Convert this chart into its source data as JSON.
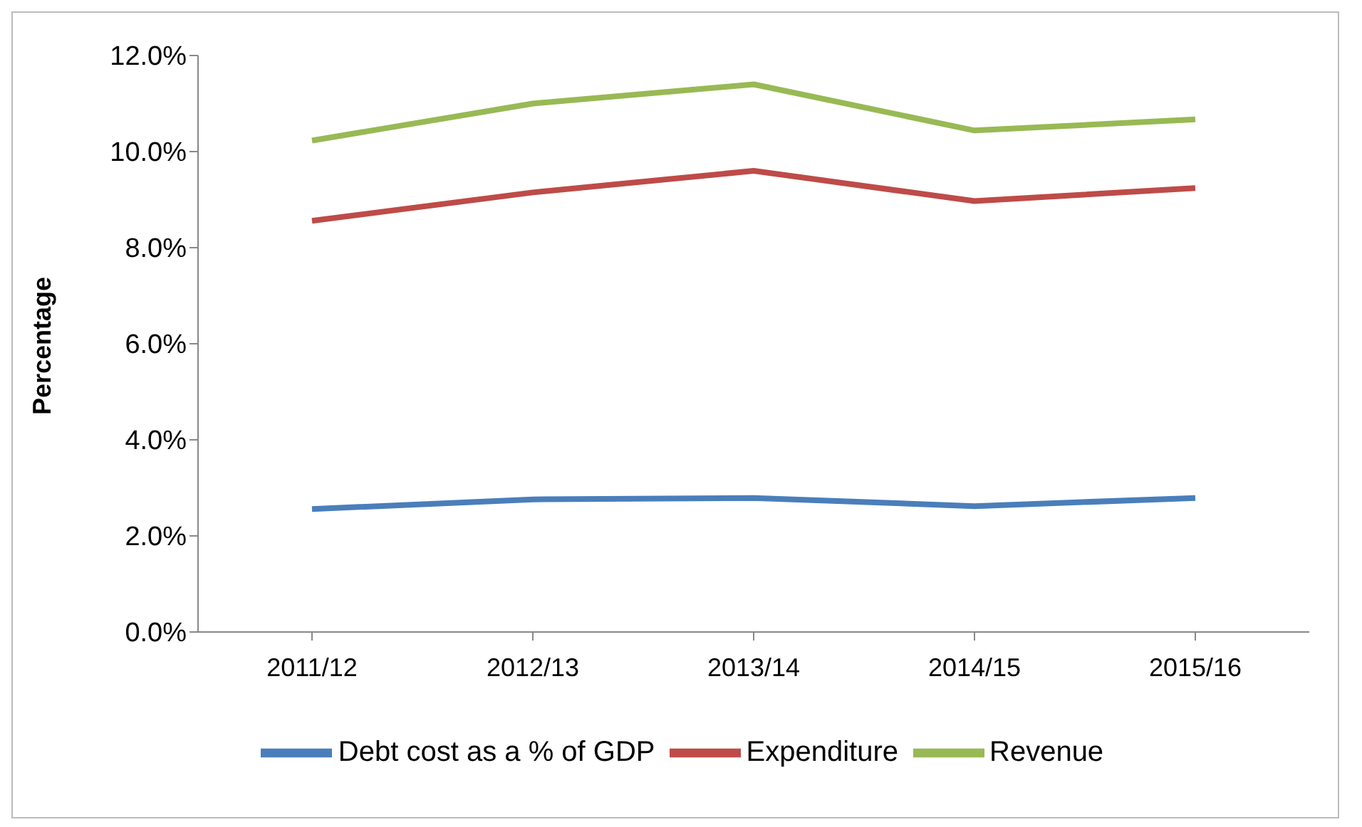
{
  "chart_data": {
    "type": "line",
    "ylabel": "Percentage",
    "categories": [
      "2011/12",
      "2012/13",
      "2013/14",
      "2014/15",
      "2015/16"
    ],
    "series": [
      {
        "name": "Debt cost as a % of GDP",
        "color": "#4a7ebb",
        "values": [
          2.56,
          2.76,
          2.79,
          2.62,
          2.79
        ]
      },
      {
        "name": "Expenditure",
        "color": "#be4b48",
        "values": [
          8.56,
          9.15,
          9.6,
          8.97,
          9.24
        ]
      },
      {
        "name": "Revenue",
        "color": "#98b954",
        "values": [
          10.23,
          11.0,
          11.4,
          10.44,
          10.67
        ]
      }
    ],
    "ylim": [
      0,
      12
    ],
    "yticks": [
      {
        "value": 0,
        "label": "0.0%"
      },
      {
        "value": 2,
        "label": "2.0%"
      },
      {
        "value": 4,
        "label": "4.0%"
      },
      {
        "value": 6,
        "label": "6.0%"
      },
      {
        "value": 8,
        "label": "8.0%"
      },
      {
        "value": 10,
        "label": "10.0%"
      },
      {
        "value": 12,
        "label": "12.0%"
      }
    ],
    "grid": false,
    "legend": "bottom",
    "marker": "none",
    "line_style": "solid"
  }
}
